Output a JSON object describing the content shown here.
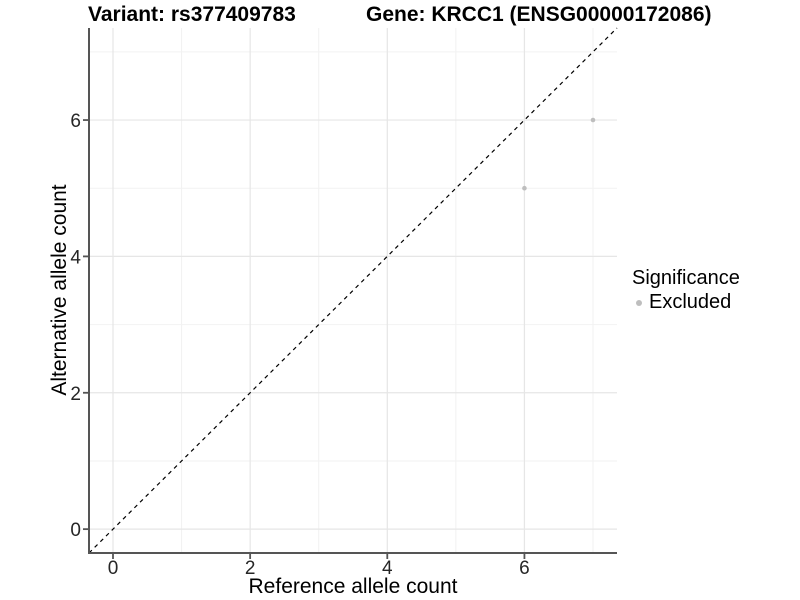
{
  "figure": {
    "title_left": "Variant: rs377409783",
    "title_right": "Gene: KRCC1 (ENSG00000172086)"
  },
  "chart_data": {
    "type": "scatter",
    "xlabel": "Reference allele count",
    "ylabel": "Alternative allele count",
    "xlim": [
      -0.35,
      7.35
    ],
    "ylim": [
      -0.35,
      7.35
    ],
    "x_major_ticks": [
      0,
      2,
      4,
      6
    ],
    "x_minor_ticks": [
      1,
      3,
      5,
      7
    ],
    "y_major_ticks": [
      0,
      2,
      4,
      6
    ],
    "y_minor_ticks": [
      1,
      3,
      5,
      7
    ],
    "grid": true,
    "points": [
      {
        "x": 6,
        "y": 5,
        "significance": "Excluded"
      },
      {
        "x": 7,
        "y": 6,
        "significance": "Excluded"
      }
    ],
    "identity_line": {
      "slope": 1,
      "intercept": 0,
      "style": "dashed",
      "color": "#000000"
    },
    "legend": {
      "title": "Significance",
      "position": "right",
      "items": [
        {
          "label": "Excluded",
          "color": "#bebebe"
        }
      ]
    },
    "colors": {
      "point": "#bebebe",
      "grid_major": "#e6e6e6",
      "grid_minor": "#f2f2f2",
      "axis_line": "#555555",
      "tick_text": "#262626"
    }
  }
}
